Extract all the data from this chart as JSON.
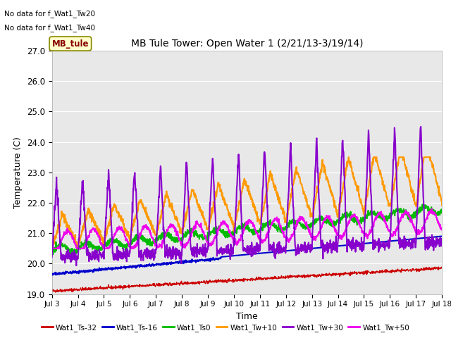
{
  "title": "MB Tule Tower: Open Water 1 (2/21/13-3/19/14)",
  "xlabel": "Time",
  "ylabel": "Temperature (C)",
  "ylim": [
    19.0,
    27.0
  ],
  "yticks": [
    19.0,
    20.0,
    21.0,
    22.0,
    23.0,
    24.0,
    25.0,
    26.0,
    27.0
  ],
  "xtick_labels": [
    "Jul 3",
    "Jul 4",
    "Jul 5",
    "Jul 6",
    "Jul 7",
    "Jul 8",
    "Jul 9",
    "Jul 10",
    "Jul 11",
    "Jul 12",
    "Jul 13",
    "Jul 14",
    "Jul 15",
    "Jul 16",
    "Jul 17",
    "Jul 18"
  ],
  "no_data_text1": "No data for f_Wat1_Tw20",
  "no_data_text2": "No data for f_Wat1_Tw40",
  "legend_label_text": "MB_tule",
  "bg_color": "#e8e8e8",
  "series": {
    "Wat1_Ts-32": {
      "color": "#cc0000",
      "lw": 1.0
    },
    "Wat1_Ts-16": {
      "color": "#0000cc",
      "lw": 1.5
    },
    "Wat1_Ts0": {
      "color": "#00bb00",
      "lw": 1.5
    },
    "Wat1_Tw+10": {
      "color": "#ff9900",
      "lw": 1.5
    },
    "Wat1_Tw+30": {
      "color": "#8800cc",
      "lw": 1.5
    },
    "Wat1_Tw+50": {
      "color": "#ee00ee",
      "lw": 1.5
    }
  }
}
